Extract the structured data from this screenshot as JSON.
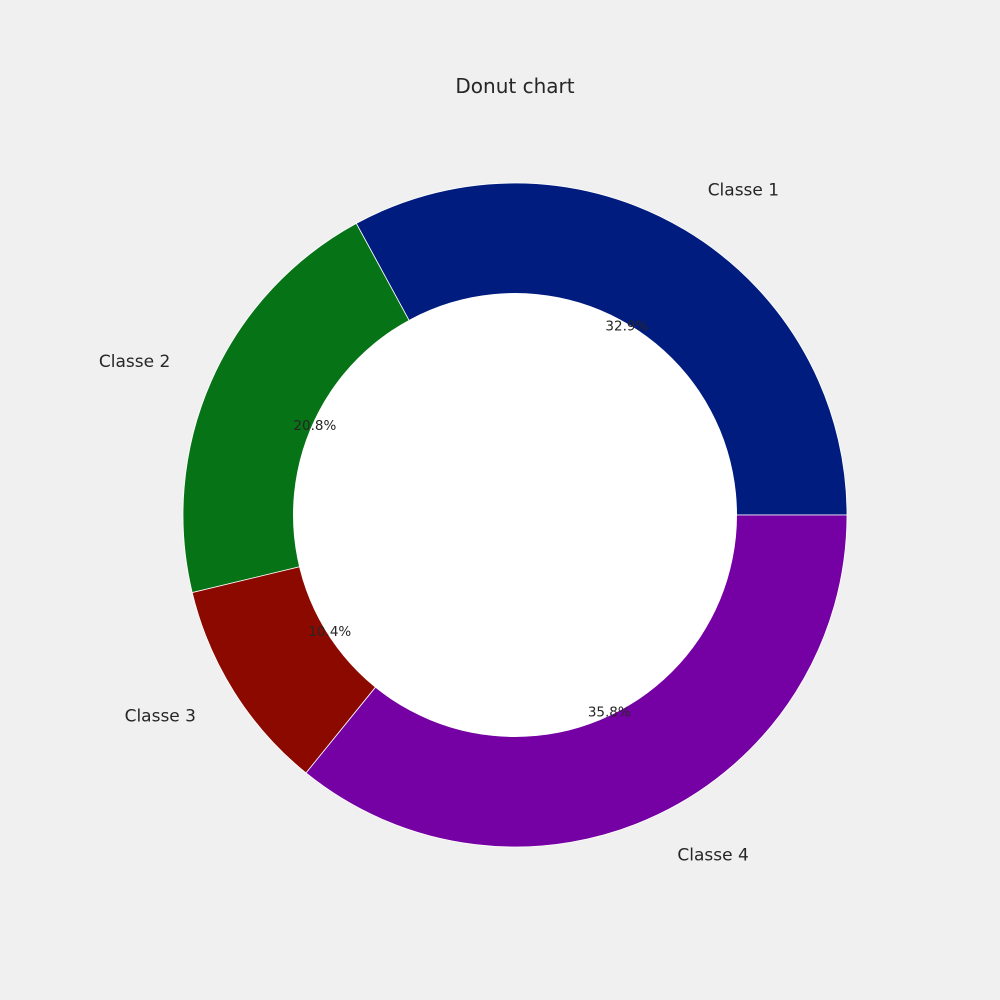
{
  "chart_data": {
    "type": "pie",
    "title": "Donut chart",
    "categories": [
      "Classe 1",
      "Classe 2",
      "Classe 3",
      "Classe 4"
    ],
    "values": [
      32.9,
      20.8,
      10.4,
      35.8
    ],
    "percent_labels": [
      "32.9%",
      "20.8%",
      "10.4%",
      "35.8%"
    ],
    "colors": [
      "#001c7f",
      "#077317",
      "#8c0900",
      "#7500a3"
    ],
    "hole_color": "#ffffff",
    "background_color": "#f0f0f0",
    "start_angle_deg": 0,
    "direction": "counterclockwise",
    "donut": true,
    "legend": "none"
  }
}
